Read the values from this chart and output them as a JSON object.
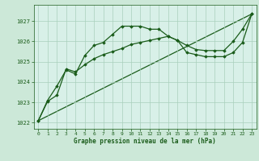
{
  "title": "Graphe pression niveau de la mer (hPa)",
  "bg_color": "#cce8d8",
  "plot_bg_color": "#d8f0e8",
  "grid_color": "#aacfbc",
  "line_color": "#1a5c1a",
  "marker_color": "#1a5c1a",
  "xlabel_color": "#1a5c1a",
  "xlim": [
    -0.5,
    23.5
  ],
  "ylim": [
    1021.7,
    1027.8
  ],
  "yticks": [
    1022,
    1023,
    1024,
    1025,
    1026,
    1027
  ],
  "xticks": [
    0,
    1,
    2,
    3,
    4,
    5,
    6,
    7,
    8,
    9,
    10,
    11,
    12,
    13,
    14,
    15,
    16,
    17,
    18,
    19,
    20,
    21,
    22,
    23
  ],
  "series1_x": [
    0,
    1,
    2,
    3,
    4,
    5,
    6,
    7,
    8,
    9,
    10,
    11,
    12,
    13,
    14,
    15,
    16,
    17,
    18,
    19,
    20,
    21,
    22,
    23
  ],
  "series1_y": [
    1022.1,
    1023.1,
    1023.8,
    1024.6,
    1024.4,
    1025.3,
    1025.8,
    1025.95,
    1026.35,
    1026.75,
    1026.75,
    1026.75,
    1026.6,
    1026.6,
    1026.25,
    1026.05,
    1025.8,
    1025.6,
    1025.55,
    1025.55,
    1025.55,
    1026.0,
    1026.6,
    1027.35
  ],
  "series2_x": [
    0,
    1,
    2,
    3,
    4,
    5,
    6,
    7,
    8,
    9,
    10,
    11,
    12,
    13,
    14,
    15,
    16,
    17,
    18,
    19,
    20,
    21,
    22,
    23
  ],
  "series2_y": [
    1022.1,
    1023.05,
    1023.35,
    1024.65,
    1024.5,
    1024.85,
    1025.15,
    1025.35,
    1025.5,
    1025.65,
    1025.85,
    1025.95,
    1026.05,
    1026.15,
    1026.25,
    1026.05,
    1025.45,
    1025.35,
    1025.25,
    1025.25,
    1025.25,
    1025.45,
    1025.95,
    1027.35
  ],
  "series3_x": [
    0,
    23
  ],
  "series3_y": [
    1022.1,
    1027.35
  ]
}
